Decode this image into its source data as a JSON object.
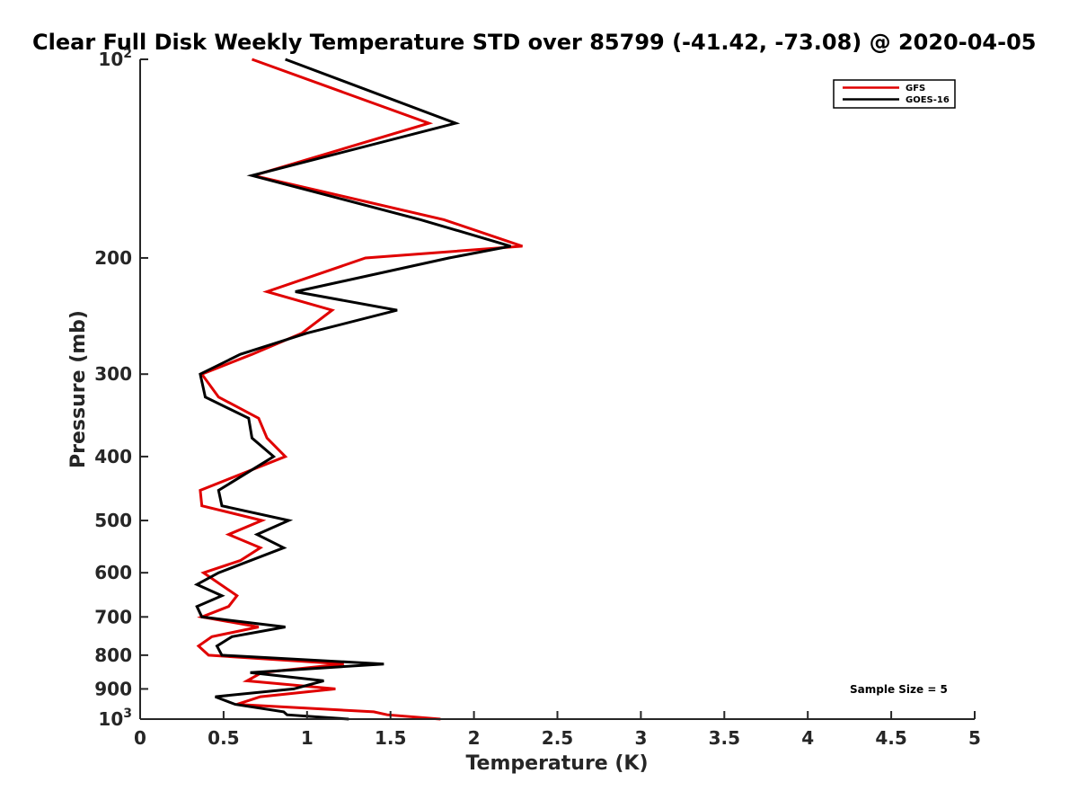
{
  "chart_data": {
    "type": "line",
    "title": "Clear Full Disk Weekly Temperature STD over 85799 (-41.42, -73.08) @ 2020-04-05",
    "xlabel": "Temperature (K)",
    "ylabel": "Pressure (mb)",
    "xlim": [
      0,
      5
    ],
    "ylim": [
      100,
      1000
    ],
    "yscale": "log",
    "y_reversed": true,
    "grid": false,
    "legend_position": "top-right",
    "x_ticks": [
      0,
      0.5,
      1,
      1.5,
      2,
      2.5,
      3,
      3.5,
      4,
      4.5,
      5
    ],
    "x_tick_labels": [
      "0",
      "0.5",
      "1",
      "1.5",
      "2",
      "2.5",
      "3",
      "3.5",
      "4",
      "4.5",
      "5"
    ],
    "y_ticks": [
      100,
      200,
      300,
      400,
      500,
      600,
      700,
      800,
      900,
      1000
    ],
    "y_tick_labels": [
      "10^2",
      "200",
      "300",
      "400",
      "500",
      "600",
      "700",
      "800",
      "900",
      "10^3"
    ],
    "annotation": "Sample Size = 5",
    "series": [
      {
        "name": "GFS",
        "color": "#e00000",
        "points": [
          [
            0.67,
            100
          ],
          [
            1.73,
            125
          ],
          [
            0.68,
            150
          ],
          [
            1.82,
            175
          ],
          [
            2.29,
            192
          ],
          [
            1.35,
            200
          ],
          [
            0.76,
            225
          ],
          [
            1.15,
            240
          ],
          [
            0.97,
            260
          ],
          [
            0.67,
            280
          ],
          [
            0.37,
            300
          ],
          [
            0.47,
            325
          ],
          [
            0.71,
            350
          ],
          [
            0.76,
            375
          ],
          [
            0.87,
            400
          ],
          [
            0.36,
            450
          ],
          [
            0.37,
            475
          ],
          [
            0.73,
            500
          ],
          [
            0.53,
            525
          ],
          [
            0.72,
            550
          ],
          [
            0.6,
            575
          ],
          [
            0.38,
            600
          ],
          [
            0.58,
            650
          ],
          [
            0.53,
            675
          ],
          [
            0.37,
            700
          ],
          [
            0.71,
            725
          ],
          [
            0.43,
            750
          ],
          [
            0.35,
            775
          ],
          [
            0.41,
            800
          ],
          [
            1.22,
            825
          ],
          [
            0.73,
            850
          ],
          [
            0.64,
            875
          ],
          [
            1.17,
            900
          ],
          [
            0.72,
            925
          ],
          [
            0.58,
            950
          ],
          [
            1.4,
            975
          ],
          [
            1.48,
            985
          ],
          [
            1.8,
            1000
          ]
        ]
      },
      {
        "name": "GOES-16",
        "color": "#000000",
        "points": [
          [
            0.87,
            100
          ],
          [
            1.89,
            125
          ],
          [
            0.67,
            150
          ],
          [
            1.68,
            175
          ],
          [
            2.22,
            192
          ],
          [
            1.85,
            200
          ],
          [
            0.93,
            225
          ],
          [
            1.54,
            240
          ],
          [
            1.0,
            260
          ],
          [
            0.6,
            280
          ],
          [
            0.36,
            300
          ],
          [
            0.39,
            325
          ],
          [
            0.65,
            350
          ],
          [
            0.67,
            375
          ],
          [
            0.8,
            400
          ],
          [
            0.47,
            450
          ],
          [
            0.49,
            475
          ],
          [
            0.89,
            500
          ],
          [
            0.7,
            525
          ],
          [
            0.86,
            550
          ],
          [
            0.47,
            600
          ],
          [
            0.34,
            625
          ],
          [
            0.49,
            650
          ],
          [
            0.34,
            675
          ],
          [
            0.37,
            700
          ],
          [
            0.87,
            725
          ],
          [
            0.55,
            750
          ],
          [
            0.46,
            775
          ],
          [
            0.49,
            800
          ],
          [
            1.46,
            825
          ],
          [
            0.66,
            850
          ],
          [
            1.1,
            875
          ],
          [
            0.92,
            900
          ],
          [
            0.45,
            925
          ],
          [
            0.57,
            950
          ],
          [
            0.86,
            975
          ],
          [
            0.88,
            985
          ],
          [
            1.25,
            1000
          ]
        ]
      }
    ]
  }
}
